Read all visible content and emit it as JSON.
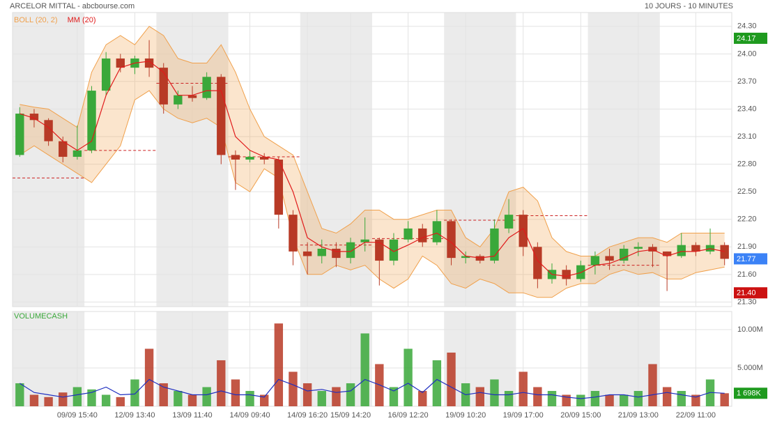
{
  "header": {
    "title": "ARCELOR MITTAL - abcbourse.com",
    "period": "10 JOURS - 10 MINUTES"
  },
  "chart_data": [
    {
      "type": "candlestick",
      "categories": [
        null,
        null,
        null,
        null,
        "09/09 15:40",
        null,
        null,
        null,
        "12/09 13:40",
        null,
        null,
        null,
        "13/09 11:40",
        null,
        null,
        null,
        "14/09 09:40",
        null,
        null,
        null,
        "14/09 16:20",
        null,
        null,
        "15/09 14:20",
        null,
        null,
        null,
        "16/09 12:20",
        null,
        null,
        null,
        "19/09 10:20",
        null,
        null,
        null,
        "19/09 17:00",
        null,
        null,
        null,
        "20/09 15:00",
        null,
        null,
        null,
        "21/09 13:00",
        null,
        null,
        null,
        "22/09 11:00",
        null,
        null
      ],
      "open": [
        22.9,
        23.35,
        23.28,
        23.05,
        22.88,
        22.95,
        23.6,
        23.95,
        23.85,
        23.95,
        23.85,
        23.45,
        23.55,
        23.52,
        23.75,
        22.9,
        22.85,
        22.88,
        22.85,
        22.25,
        21.85,
        21.8,
        21.88,
        21.78,
        21.95,
        21.98,
        21.75,
        21.98,
        22.1,
        21.95,
        22.18,
        21.78,
        21.8,
        21.75,
        22.1,
        22.25,
        21.9,
        21.55,
        21.65,
        21.55,
        21.7,
        21.8,
        21.75,
        21.88,
        21.9,
        21.85,
        21.8,
        21.92,
        21.85,
        21.92
      ],
      "high": [
        23.42,
        23.4,
        23.3,
        23.1,
        23.22,
        23.65,
        24.02,
        24,
        23.98,
        24.15,
        23.9,
        23.6,
        23.65,
        23.8,
        23.78,
        22.95,
        22.95,
        22.92,
        22.88,
        22.3,
        21.95,
        21.98,
        21.95,
        22,
        22.22,
        22,
        22.05,
        22.18,
        22.15,
        22.3,
        22.2,
        21.85,
        21.82,
        22.2,
        22.42,
        22.3,
        21.95,
        21.72,
        21.7,
        21.75,
        21.85,
        21.88,
        21.92,
        21.95,
        21.93,
        21.85,
        22.05,
        21.95,
        22.1,
        21.95
      ],
      "low": [
        22.88,
        23.2,
        23,
        22.82,
        22.85,
        22.92,
        23.55,
        23.8,
        23.78,
        23.75,
        23.35,
        23.4,
        23.48,
        23.5,
        22.8,
        22.52,
        22.82,
        22.8,
        22.1,
        21.7,
        21.6,
        21.72,
        21.68,
        21.72,
        21.85,
        21.48,
        21.7,
        21.95,
        21.9,
        21.92,
        21.7,
        21.72,
        21.72,
        21.72,
        22.05,
        21.8,
        21.45,
        21.5,
        21.48,
        21.52,
        21.6,
        21.65,
        21.72,
        21.8,
        21.68,
        21.42,
        21.78,
        21.8,
        21.82,
        21.7
      ],
      "close": [
        23.35,
        23.28,
        23.05,
        22.88,
        22.95,
        23.6,
        23.95,
        23.85,
        23.95,
        23.85,
        23.45,
        23.55,
        23.52,
        23.75,
        22.9,
        22.85,
        22.88,
        22.85,
        22.25,
        21.85,
        21.8,
        21.88,
        21.78,
        21.95,
        21.98,
        21.75,
        21.98,
        22.1,
        21.95,
        22.18,
        21.78,
        21.8,
        21.75,
        22.1,
        22.25,
        21.9,
        21.55,
        21.65,
        21.55,
        21.7,
        21.8,
        21.75,
        21.88,
        21.9,
        21.85,
        21.8,
        21.92,
        21.85,
        21.92,
        21.77
      ],
      "up_color": "#3aa83a",
      "down_color": "#b83a26",
      "series": [
        {
          "name": "BOLL (20, 2)",
          "color": "#f0a04b",
          "upper": [
            23.45,
            23.42,
            23.4,
            23.3,
            23.2,
            23.8,
            24.1,
            24.2,
            24.1,
            24.3,
            24.2,
            23.95,
            23.9,
            23.9,
            24.1,
            23.8,
            23.4,
            23.1,
            23,
            22.9,
            22.5,
            22.1,
            22.05,
            22.15,
            22.3,
            22.3,
            22.2,
            22.2,
            22.25,
            22.3,
            22.3,
            22,
            21.9,
            22.1,
            22.5,
            22.55,
            22.4,
            22,
            21.85,
            21.8,
            21.8,
            21.9,
            21.95,
            22,
            22,
            21.95,
            22.05,
            22.05,
            22.05,
            22.05
          ],
          "lower": [
            22.9,
            23,
            22.9,
            22.8,
            22.7,
            22.6,
            22.8,
            23,
            23.5,
            23.6,
            23.4,
            23.3,
            23.25,
            23.3,
            23.2,
            22.6,
            22.5,
            22.75,
            22.65,
            22,
            21.6,
            21.6,
            21.7,
            21.65,
            21.7,
            21.55,
            21.45,
            21.55,
            21.8,
            21.7,
            21.5,
            21.45,
            21.55,
            21.5,
            21.4,
            21.4,
            21.35,
            21.35,
            21.45,
            21.5,
            21.5,
            21.6,
            21.65,
            21.6,
            21.62,
            21.55,
            21.55,
            21.62,
            21.65,
            21.68
          ]
        },
        {
          "name": "MM (20)",
          "color": "#e01b1b",
          "values": [
            23.35,
            23.3,
            23.2,
            23.05,
            22.95,
            23.05,
            23.55,
            23.85,
            23.9,
            23.92,
            23.8,
            23.55,
            23.55,
            23.6,
            23.6,
            23.1,
            22.95,
            22.88,
            22.85,
            22.5,
            22,
            21.9,
            21.85,
            21.85,
            21.95,
            21.95,
            21.85,
            21.92,
            22,
            22.05,
            21.95,
            21.8,
            21.78,
            21.8,
            22,
            22.1,
            21.75,
            21.6,
            21.58,
            21.62,
            21.7,
            21.72,
            21.78,
            21.85,
            21.87,
            21.8,
            21.85,
            21.85,
            21.88,
            21.85
          ]
        }
      ],
      "day_levels": [
        22.65,
        22.95,
        23.68,
        22.88,
        21.92,
        21.99,
        22.19,
        22.24,
        21.7,
        null
      ],
      "day_level_color": "#cc2222",
      "ylim": [
        21.25,
        24.45
      ],
      "yticks": [
        {
          "value": 21.3,
          "label": "21.30"
        },
        {
          "value": 21.6,
          "label": "21.60"
        },
        {
          "value": 21.9,
          "label": "21.90"
        },
        {
          "value": 22.2,
          "label": "22.20"
        },
        {
          "value": 22.5,
          "label": "22.50"
        },
        {
          "value": 22.8,
          "label": "22.80"
        },
        {
          "value": 23.1,
          "label": "23.10"
        },
        {
          "value": 23.4,
          "label": "23.40"
        },
        {
          "value": 23.7,
          "label": "23.70"
        },
        {
          "value": 24.0,
          "label": "24.00"
        },
        {
          "value": 24.3,
          "label": "24.30"
        }
      ],
      "markers": [
        {
          "value": 24.17,
          "color": "#1e9a1e"
        },
        {
          "value": 21.77,
          "color": "#3b82f6"
        },
        {
          "value": 21.4,
          "label": "21.40",
          "color": "#cc1111"
        }
      ],
      "grid": true
    },
    {
      "type": "bar",
      "title": "VOLUMECASH",
      "title_color": "#3aa83a",
      "values": [
        3000000,
        1500000,
        1200000,
        1800000,
        2500000,
        2200000,
        1500000,
        1200000,
        3500000,
        7500000,
        3000000,
        2000000,
        1500000,
        2500000,
        6000000,
        3500000,
        2000000,
        1500000,
        10800000,
        4500000,
        3000000,
        2000000,
        2500000,
        3000000,
        9500000,
        5500000,
        2500000,
        7500000,
        2000000,
        6000000,
        7000000,
        3000000,
        2500000,
        3500000,
        2000000,
        4500000,
        2500000,
        2000000,
        1500000,
        1500000,
        2000000,
        1500000,
        1500000,
        2000000,
        5500000,
        2500000,
        2000000,
        1500000,
        3500000,
        1700000
      ],
      "average": [
        3000000,
        1800000,
        1500000,
        1200000,
        1500000,
        1800000,
        2500000,
        1500000,
        1600000,
        3500000,
        2500000,
        2000000,
        1500000,
        1500000,
        2000000,
        1500000,
        1500000,
        1200000,
        3500000,
        2800000,
        2000000,
        2200000,
        1800000,
        2000000,
        3500000,
        2800000,
        2000000,
        3000000,
        1800000,
        3500000,
        2500000,
        1500000,
        1800000,
        1500000,
        1500000,
        1800000,
        1500000,
        1500000,
        1200000,
        1000000,
        1200000,
        1500000,
        1500000,
        1200000,
        1500000,
        1800000,
        1500000,
        1200000,
        1800000,
        1700000
      ],
      "average_color": "#1f2fc0",
      "ylim": [
        0,
        12360000
      ],
      "yticks": [
        {
          "value": 5000000,
          "label": "5.000M"
        },
        {
          "value": 10000000,
          "label": "10.00M"
        }
      ],
      "markers": [
        {
          "value": 1698000,
          "label": "1 698K",
          "color": "#1e9a1e"
        }
      ]
    }
  ]
}
